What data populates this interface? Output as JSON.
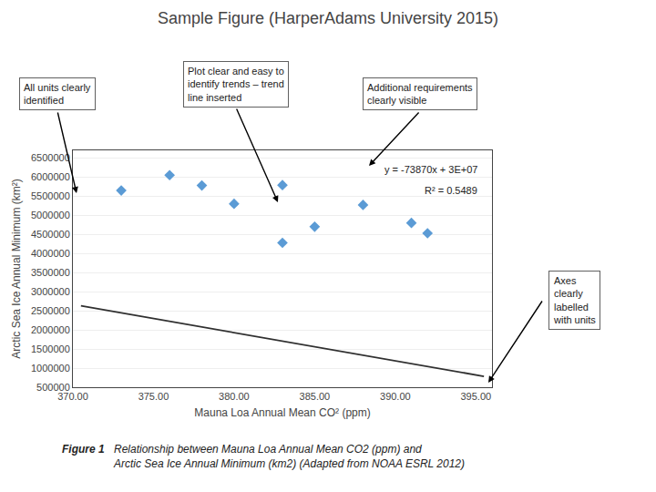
{
  "chart_data": {
    "type": "scatter",
    "title": "Sample Figure (HarperAdams University 2015)",
    "xlabel": "Mauna Loa Annual Mean CO² (ppm)",
    "ylabel": "Arctic Sea Ice Annual Minimum (km²)",
    "series": [
      {
        "type": "scatter",
        "marker": "diamond",
        "color": "#5b9bd5",
        "x": [
          373,
          376,
          378,
          380,
          383,
          383,
          385,
          388,
          391,
          392
        ],
        "values": [
          5650000,
          6050000,
          5780000,
          5300000,
          5790000,
          4280000,
          4700000,
          5270000,
          4800000,
          4530000
        ]
      },
      {
        "type": "line",
        "line_style": "solid",
        "color": "#303030",
        "x": [
          370.5,
          395.5
        ],
        "values": [
          2631165,
          784415
        ]
      }
    ],
    "xlim": [
      370,
      396
    ],
    "ylim": [
      500000,
      6700000
    ],
    "xticks": [
      {
        "value": 370,
        "label": "370.00"
      },
      {
        "value": 375,
        "label": "375.00"
      },
      {
        "value": 380,
        "label": "380.00"
      },
      {
        "value": 385,
        "label": "385.00"
      },
      {
        "value": 390,
        "label": "390.00"
      },
      {
        "value": 395,
        "label": "395.00"
      }
    ],
    "yticks": [
      500000,
      1000000,
      1500000,
      2000000,
      2500000,
      3000000,
      3500000,
      4000000,
      4500000,
      5000000,
      5500000,
      6000000,
      6500000
    ],
    "grid": "y",
    "annotations": [
      "y = -73870x + 3E+07",
      "R² = 0.5489",
      "All units clearly\nidentified",
      "Plot clear and easy to\nidentify trends – trend\nline inserted",
      "Additional requirements\nclearly visible",
      "Axes\nclearly\nlabelled\nwith units"
    ],
    "caption": [
      "Figure 1",
      "Relationship between Mauna Loa Annual Mean CO2 (ppm) and\nArctic Sea Ice Annual Minimum (km2) (Adapted from NOAA ESRL 2012)"
    ]
  }
}
